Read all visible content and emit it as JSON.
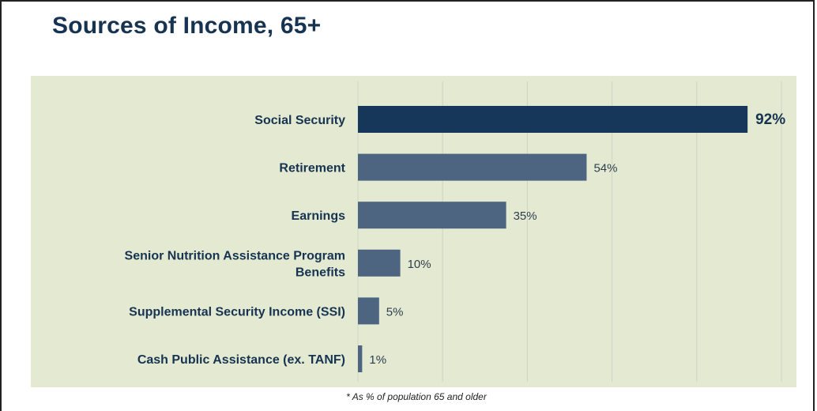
{
  "title": "Sources of Income, 65+",
  "footnote": "* As % of population 65 and older",
  "colors": {
    "background_panel": "#e4ead1",
    "title": "#173352",
    "highlight_bar": "#17375a",
    "bar": "#4d6580",
    "gridline": "#cdd4c2"
  },
  "chart_data": {
    "type": "bar",
    "orientation": "horizontal",
    "categories": [
      "Social Security",
      "Retirement",
      "Earnings",
      "Senior Nutrition Assistance Program Benefits",
      "Supplemental Security Income (SSI)",
      "Cash Public Assistance (ex. TANF)"
    ],
    "category_label_lines": [
      [
        "Social Security"
      ],
      [
        "Retirement"
      ],
      [
        "Earnings"
      ],
      [
        "Senior Nutrition Assistance Program",
        "Benefits"
      ],
      [
        "Supplemental Security Income (SSI)"
      ],
      [
        "Cash Public Assistance (ex. TANF)"
      ]
    ],
    "values": [
      92,
      54,
      35,
      10,
      5,
      1
    ],
    "data_labels": [
      "92%",
      "54%",
      "35%",
      "10%",
      "5%",
      "1%"
    ],
    "highlight_index": 0,
    "xlim": [
      0,
      100
    ],
    "grid": true,
    "grid_step": 20,
    "xlabel": "",
    "ylabel": ""
  }
}
